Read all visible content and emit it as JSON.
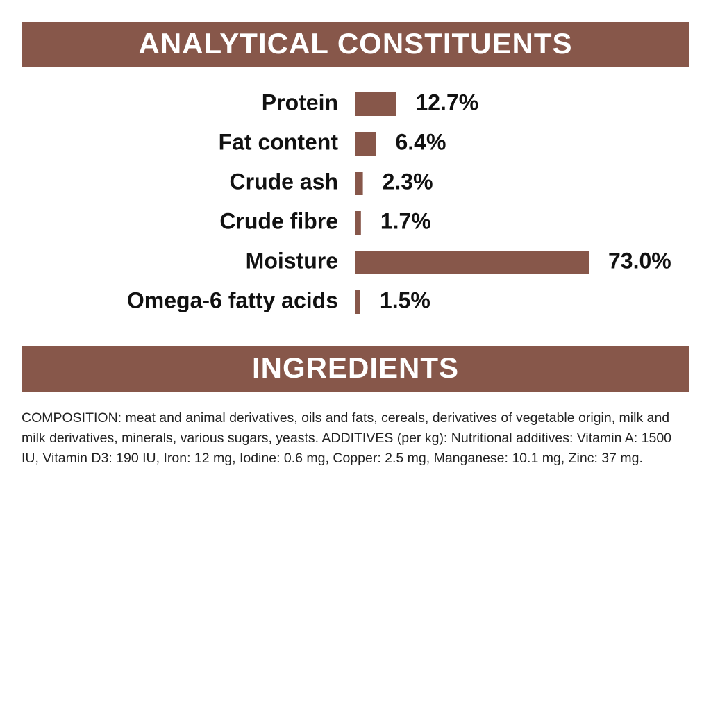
{
  "chart_data": {
    "type": "bar",
    "title": "ANALYTICAL CONSTITUENTS",
    "categories": [
      "Protein",
      "Fat content",
      "Crude ash",
      "Crude fibre",
      "Moisture",
      "Omega-6 fatty acids"
    ],
    "values": [
      12.7,
      6.4,
      2.3,
      1.7,
      73.0,
      1.5
    ],
    "value_labels": [
      "12.7%",
      "6.4%",
      "2.3%",
      "1.7%",
      "73.0%",
      "1.5%"
    ],
    "color": "#87574a"
  },
  "ingredients": {
    "title": "INGREDIENTS",
    "text": "COMPOSITION: meat and animal derivatives, oils and fats, cereals, derivatives of vegetable origin, milk and milk derivatives, minerals, various sugars, yeasts. ADDITIVES (per kg): Nutritional additives: Vitamin A: 1500 IU, Vitamin D3: 190 IU, Iron: 12 mg, Iodine: 0.6 mg, Copper: 2.5 mg, Manganese: 10.1 mg, Zinc: 37 mg."
  }
}
